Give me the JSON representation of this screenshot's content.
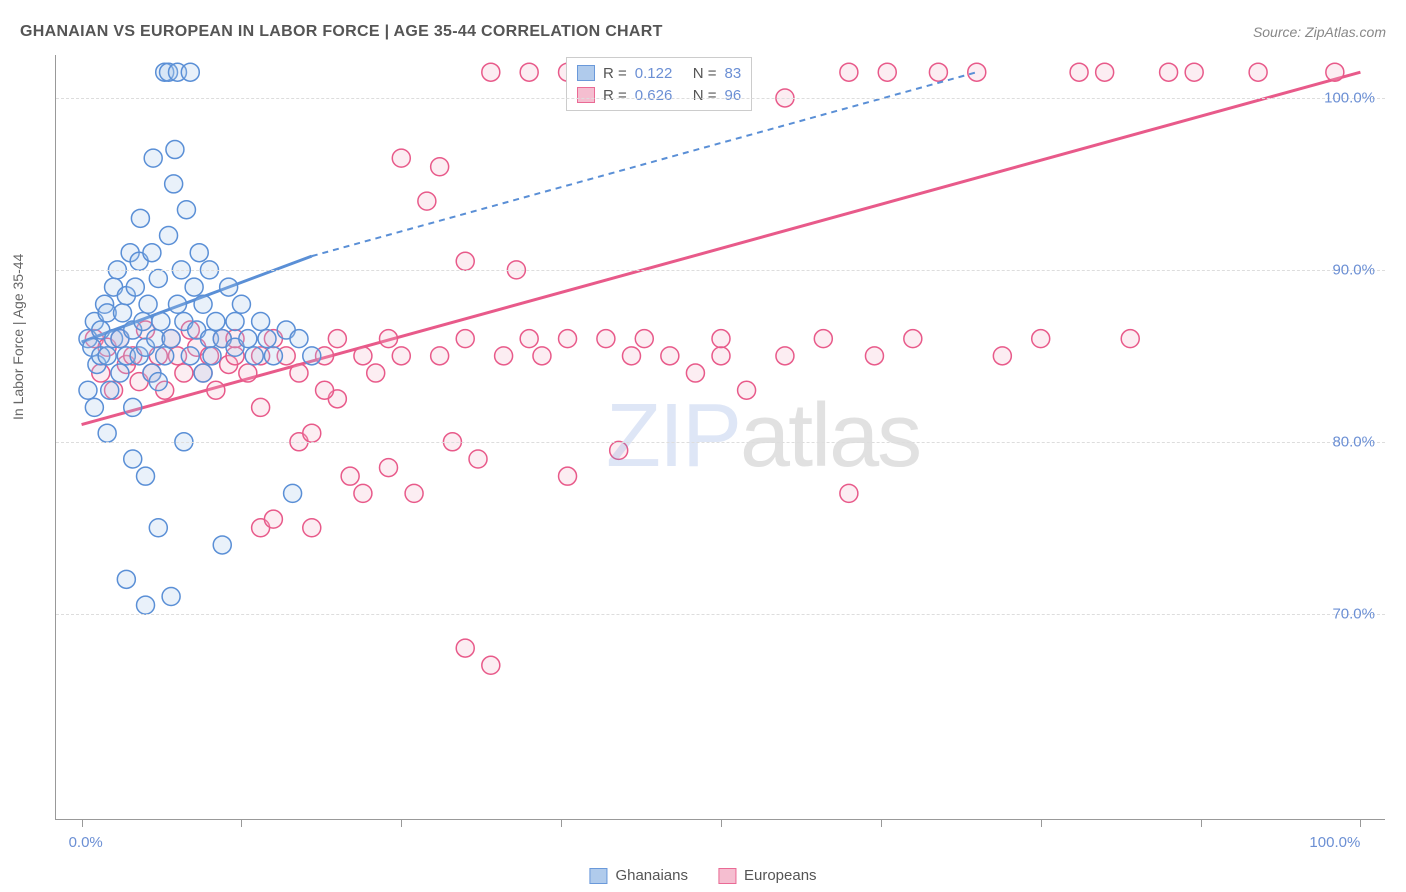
{
  "chart": {
    "type": "scatter",
    "title": "GHANAIAN VS EUROPEAN IN LABOR FORCE | AGE 35-44 CORRELATION CHART",
    "source": "Source: ZipAtlas.com",
    "y_axis_label": "In Labor Force | Age 35-44",
    "watermark_zip": "ZIP",
    "watermark_atlas": "atlas",
    "background_color": "#ffffff",
    "grid_color": "#dddddd",
    "axis_color": "#999999",
    "title_color": "#555555",
    "source_color": "#888888",
    "tick_label_color": "#6b8fd4",
    "title_fontsize": 16,
    "tick_fontsize": 15,
    "marker_radius": 9,
    "marker_stroke_width": 1.5,
    "marker_fill_opacity": 0.25,
    "xlim": [
      -2,
      102
    ],
    "ylim": [
      58,
      102.5
    ],
    "y_ticks": [
      70,
      80,
      90,
      100
    ],
    "y_tick_labels": [
      "70.0%",
      "80.0%",
      "90.0%",
      "100.0%"
    ],
    "x_ticks": [
      0,
      12.5,
      25,
      37.5,
      50,
      62.5,
      75,
      87.5,
      100
    ],
    "x_tick_labels": {
      "0": "0.0%",
      "100": "100.0%"
    },
    "series": {
      "ghanaians": {
        "label": "Ghanaians",
        "color_stroke": "#5a8fd6",
        "color_fill": "#a8c6ea",
        "stats": {
          "R": "0.122",
          "N": "83"
        },
        "trend_solid": {
          "x1": 0,
          "y1": 85.8,
          "x2": 18,
          "y2": 90.8
        },
        "trend_dash": {
          "x1": 18,
          "y1": 90.8,
          "x2": 70,
          "y2": 101.5
        },
        "points": [
          [
            0.5,
            86
          ],
          [
            0.8,
            85.5
          ],
          [
            1,
            87
          ],
          [
            1.2,
            84.5
          ],
          [
            1.5,
            85
          ],
          [
            1.5,
            86.5
          ],
          [
            1.8,
            88
          ],
          [
            2,
            85
          ],
          [
            2,
            87.5
          ],
          [
            2.2,
            83
          ],
          [
            2.5,
            86
          ],
          [
            2.5,
            89
          ],
          [
            2.8,
            90
          ],
          [
            3,
            84
          ],
          [
            3,
            86
          ],
          [
            3.2,
            87.5
          ],
          [
            3.5,
            85
          ],
          [
            3.5,
            88.5
          ],
          [
            3.8,
            91
          ],
          [
            4,
            82
          ],
          [
            4,
            86.5
          ],
          [
            4.2,
            89
          ],
          [
            4.5,
            85
          ],
          [
            4.5,
            90.5
          ],
          [
            4.6,
            93
          ],
          [
            4.8,
            87
          ],
          [
            5,
            78
          ],
          [
            5,
            85.5
          ],
          [
            5.2,
            88
          ],
          [
            5.5,
            84
          ],
          [
            5.5,
            91
          ],
          [
            5.6,
            96.5
          ],
          [
            5.8,
            86
          ],
          [
            6,
            75
          ],
          [
            6,
            89.5
          ],
          [
            6.2,
            87
          ],
          [
            6.5,
            85
          ],
          [
            6.5,
            101.5
          ],
          [
            6.8,
            92
          ],
          [
            6.8,
            101.5
          ],
          [
            7,
            71
          ],
          [
            7,
            86
          ],
          [
            7.2,
            95
          ],
          [
            7.3,
            97
          ],
          [
            7.5,
            88
          ],
          [
            7.5,
            101.5
          ],
          [
            7.8,
            90
          ],
          [
            8,
            80
          ],
          [
            8,
            87
          ],
          [
            8.2,
            93.5
          ],
          [
            8.5,
            85
          ],
          [
            8.5,
            101.5
          ],
          [
            8.8,
            89
          ],
          [
            9,
            86.5
          ],
          [
            9.2,
            91
          ],
          [
            9.5,
            84
          ],
          [
            9.5,
            88
          ],
          [
            10,
            86
          ],
          [
            10,
            90
          ],
          [
            10.2,
            85
          ],
          [
            10.5,
            87
          ],
          [
            11,
            74
          ],
          [
            11,
            86
          ],
          [
            11.5,
            89
          ],
          [
            12,
            85.5
          ],
          [
            12,
            87
          ],
          [
            12.5,
            88
          ],
          [
            13,
            86
          ],
          [
            13.5,
            85
          ],
          [
            14,
            87
          ],
          [
            14.5,
            86
          ],
          [
            15,
            85
          ],
          [
            16,
            86.5
          ],
          [
            16.5,
            77
          ],
          [
            17,
            86
          ],
          [
            18,
            85
          ],
          [
            3.5,
            72
          ],
          [
            5,
            70.5
          ],
          [
            4,
            79
          ],
          [
            2,
            80.5
          ],
          [
            1,
            82
          ],
          [
            0.5,
            83
          ],
          [
            6,
            83.5
          ]
        ]
      },
      "europeans": {
        "label": "Europeans",
        "color_stroke": "#e85a8a",
        "color_fill": "#f5b8cc",
        "stats": {
          "R": "0.626",
          "N": "96"
        },
        "trend_solid": {
          "x1": 0,
          "y1": 81,
          "x2": 100,
          "y2": 101.5
        },
        "points": [
          [
            1,
            86
          ],
          [
            1.5,
            84
          ],
          [
            2,
            85.5
          ],
          [
            2.5,
            83
          ],
          [
            3,
            86
          ],
          [
            3.5,
            84.5
          ],
          [
            4,
            85
          ],
          [
            4.5,
            83.5
          ],
          [
            5,
            86.5
          ],
          [
            5.5,
            84
          ],
          [
            6,
            85
          ],
          [
            6.5,
            83
          ],
          [
            7,
            86
          ],
          [
            7.5,
            85
          ],
          [
            8,
            84
          ],
          [
            8.5,
            86.5
          ],
          [
            9,
            85.5
          ],
          [
            9.5,
            84
          ],
          [
            10,
            85
          ],
          [
            10.5,
            83
          ],
          [
            11,
            86
          ],
          [
            11.5,
            84.5
          ],
          [
            12,
            85
          ],
          [
            13,
            84
          ],
          [
            14,
            85
          ],
          [
            14,
            75
          ],
          [
            15,
            86
          ],
          [
            15,
            75.5
          ],
          [
            16,
            85
          ],
          [
            17,
            84
          ],
          [
            17,
            80
          ],
          [
            18,
            75
          ],
          [
            18,
            80.5
          ],
          [
            19,
            85
          ],
          [
            20,
            82.5
          ],
          [
            20,
            86
          ],
          [
            21,
            78
          ],
          [
            22,
            85
          ],
          [
            23,
            84
          ],
          [
            24,
            86
          ],
          [
            24,
            78.5
          ],
          [
            25,
            85
          ],
          [
            25,
            96.5
          ],
          [
            26,
            77
          ],
          [
            27,
            94
          ],
          [
            28,
            85
          ],
          [
            28,
            96
          ],
          [
            29,
            80
          ],
          [
            30,
            86
          ],
          [
            30,
            90.5
          ],
          [
            30,
            68
          ],
          [
            31,
            79
          ],
          [
            32,
            67
          ],
          [
            32,
            101.5
          ],
          [
            33,
            85
          ],
          [
            34,
            90
          ],
          [
            35,
            86
          ],
          [
            35,
            101.5
          ],
          [
            36,
            85
          ],
          [
            38,
            86
          ],
          [
            38,
            101.5
          ],
          [
            40,
            101.5
          ],
          [
            41,
            86
          ],
          [
            42,
            79.5
          ],
          [
            43,
            85
          ],
          [
            44,
            86
          ],
          [
            45,
            101.5
          ],
          [
            46,
            85
          ],
          [
            48,
            84
          ],
          [
            50,
            85
          ],
          [
            50,
            86
          ],
          [
            52,
            83
          ],
          [
            55,
            85
          ],
          [
            55,
            100
          ],
          [
            58,
            86
          ],
          [
            60,
            101.5
          ],
          [
            60,
            77
          ],
          [
            62,
            85
          ],
          [
            63,
            101.5
          ],
          [
            65,
            86
          ],
          [
            67,
            101.5
          ],
          [
            70,
            101.5
          ],
          [
            72,
            85
          ],
          [
            75,
            86
          ],
          [
            78,
            101.5
          ],
          [
            80,
            101.5
          ],
          [
            82,
            86
          ],
          [
            85,
            101.5
          ],
          [
            87,
            101.5
          ],
          [
            92,
            101.5
          ],
          [
            98,
            101.5
          ],
          [
            12,
            86
          ],
          [
            14,
            82
          ],
          [
            19,
            83
          ],
          [
            22,
            77
          ],
          [
            38,
            78
          ]
        ]
      }
    },
    "legend_bottom": [
      {
        "label": "Ghanaians",
        "series": "ghanaians"
      },
      {
        "label": "Europeans",
        "series": "europeans"
      }
    ]
  }
}
